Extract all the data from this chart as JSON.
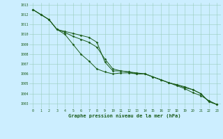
{
  "title": "Graphe pression niveau de la mer (hPa)",
  "background_color": "#cceeff",
  "grid_color": "#99ccbb",
  "line_color": "#1a5c1a",
  "x_ticks": [
    0,
    1,
    2,
    3,
    4,
    5,
    6,
    7,
    8,
    9,
    10,
    11,
    12,
    13,
    14,
    15,
    16,
    17,
    18,
    19,
    20,
    21,
    22,
    23
  ],
  "ylim": [
    1002.5,
    1013.2
  ],
  "yticks": [
    1003,
    1004,
    1005,
    1006,
    1007,
    1008,
    1009,
    1010,
    1011,
    1012,
    1013
  ],
  "series": [
    [
      1012.5,
      1012.0,
      1011.5,
      1010.5,
      1010.0,
      1009.0,
      1008.0,
      1007.3,
      1006.5,
      1006.2,
      1006.0,
      1006.1,
      1006.1,
      1006.0,
      1006.0,
      1005.7,
      1005.4,
      1005.1,
      1004.9,
      1004.7,
      1004.4,
      1004.0,
      1003.2,
      1002.9
    ],
    [
      1012.5,
      1012.0,
      1011.5,
      1010.5,
      1010.2,
      1009.8,
      1009.5,
      1009.2,
      1008.7,
      1007.5,
      1006.5,
      1006.3,
      1006.2,
      1006.1,
      1006.0,
      1005.7,
      1005.4,
      1005.1,
      1004.9,
      1004.6,
      1004.4,
      1004.0,
      1003.2,
      1002.9
    ],
    [
      1012.5,
      1012.0,
      1011.5,
      1010.5,
      1010.3,
      1010.1,
      1009.9,
      1009.7,
      1009.2,
      1007.2,
      1006.3,
      1006.3,
      1006.2,
      1006.0,
      1006.0,
      1005.7,
      1005.4,
      1005.1,
      1004.8,
      1004.5,
      1004.1,
      1003.8,
      1003.3,
      1002.9
    ]
  ]
}
